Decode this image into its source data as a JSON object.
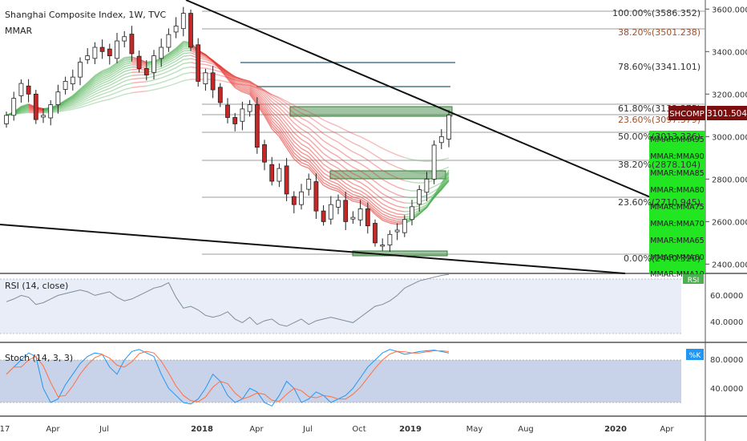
{
  "header": {
    "title": "Shanghai Composite Index, 1W, TVC",
    "indicator": "MMAR"
  },
  "price_axis": {
    "ticks": [
      "3600.000",
      "3400.000",
      "3200.000",
      "3000.000",
      "2800.000",
      "2600.000",
      "2400.000"
    ],
    "current_symbol": "SHCOMP",
    "current_value": "3101.504"
  },
  "fib_labels": [
    {
      "text": "100.00%(3586.352)",
      "color": "#333333"
    },
    {
      "text": "38.20%(3501.238)",
      "color": "#a0522d"
    },
    {
      "text": "78.60%(3341.101)",
      "color": "#333333"
    },
    {
      "text": "61.80%(3132.375)",
      "color": "#333333"
    },
    {
      "text": "23.60%(3097.379)",
      "color": "#a0522d"
    },
    {
      "text": "50.00%(3013.336)",
      "color": "#333333"
    },
    {
      "text": "38.20%(2878.104)",
      "color": "#333333"
    },
    {
      "text": "23.60%(2710.945)",
      "color": "#333333"
    },
    {
      "text": "0.00%(2440.320)",
      "color": "#333333"
    }
  ],
  "mmar_labels": [
    "MMAR:MMA95",
    "MMAR:MMA90",
    "MMAR:MMA85",
    "MMAR:MMA80",
    "MMAR:MMA75",
    "MMAR:MMA70",
    "MMAR:MMA65",
    "MMAR:MMA60",
    "MMAR:MMA10"
  ],
  "rsi": {
    "title": "RSI (14, close)",
    "ticks": [
      "60.0000",
      "40.0000"
    ],
    "badge": "RSI"
  },
  "stoch": {
    "title": "Stoch (14, 3, 3)",
    "ticks": [
      "80.0000",
      "40.0000"
    ],
    "badge": "%K"
  },
  "time_axis": {
    "labels": [
      "17",
      "Apr",
      "Jul",
      "2018",
      "Apr",
      "Jul",
      "Oct",
      "2019",
      "May",
      "Aug",
      "2020",
      "Apr"
    ]
  },
  "colors": {
    "up": "#ffffff",
    "down": "#c62828",
    "ribbon_green": "#4caf50",
    "ribbon_red": "#e53935",
    "zone": "#2e7d32",
    "label_bg": "#7b0f0f",
    "mmar_box": "#22e622"
  },
  "chart_data": {
    "type": "candlestick",
    "x_range": [
      "2017-01",
      "2020-05"
    ],
    "ylim": [
      2360,
      3620
    ],
    "weekly_closes_approx": [
      3100,
      3180,
      3250,
      3200,
      3080,
      3100,
      3150,
      3210,
      3260,
      3280,
      3350,
      3380,
      3420,
      3400,
      3380,
      3450,
      3470,
      3390,
      3320,
      3290,
      3380,
      3420,
      3480,
      3520,
      3580,
      3420,
      3260,
      3300,
      3220,
      3160,
      3090,
      3060,
      3130,
      3150,
      2950,
      2880,
      2790,
      2850,
      2730,
      2680,
      2740,
      2800,
      2650,
      2600,
      2680,
      2700,
      2600,
      2620,
      2660,
      2580,
      2500,
      2490,
      2540,
      2560,
      2610,
      2670,
      2750,
      2800,
      2960,
      3000,
      3101.5
    ],
    "rsi": {
      "ylim": [
        20,
        80
      ],
      "levels": [
        70,
        30
      ]
    },
    "stoch": {
      "ylim": [
        0,
        100
      ],
      "levels": [
        80,
        20
      ]
    }
  }
}
